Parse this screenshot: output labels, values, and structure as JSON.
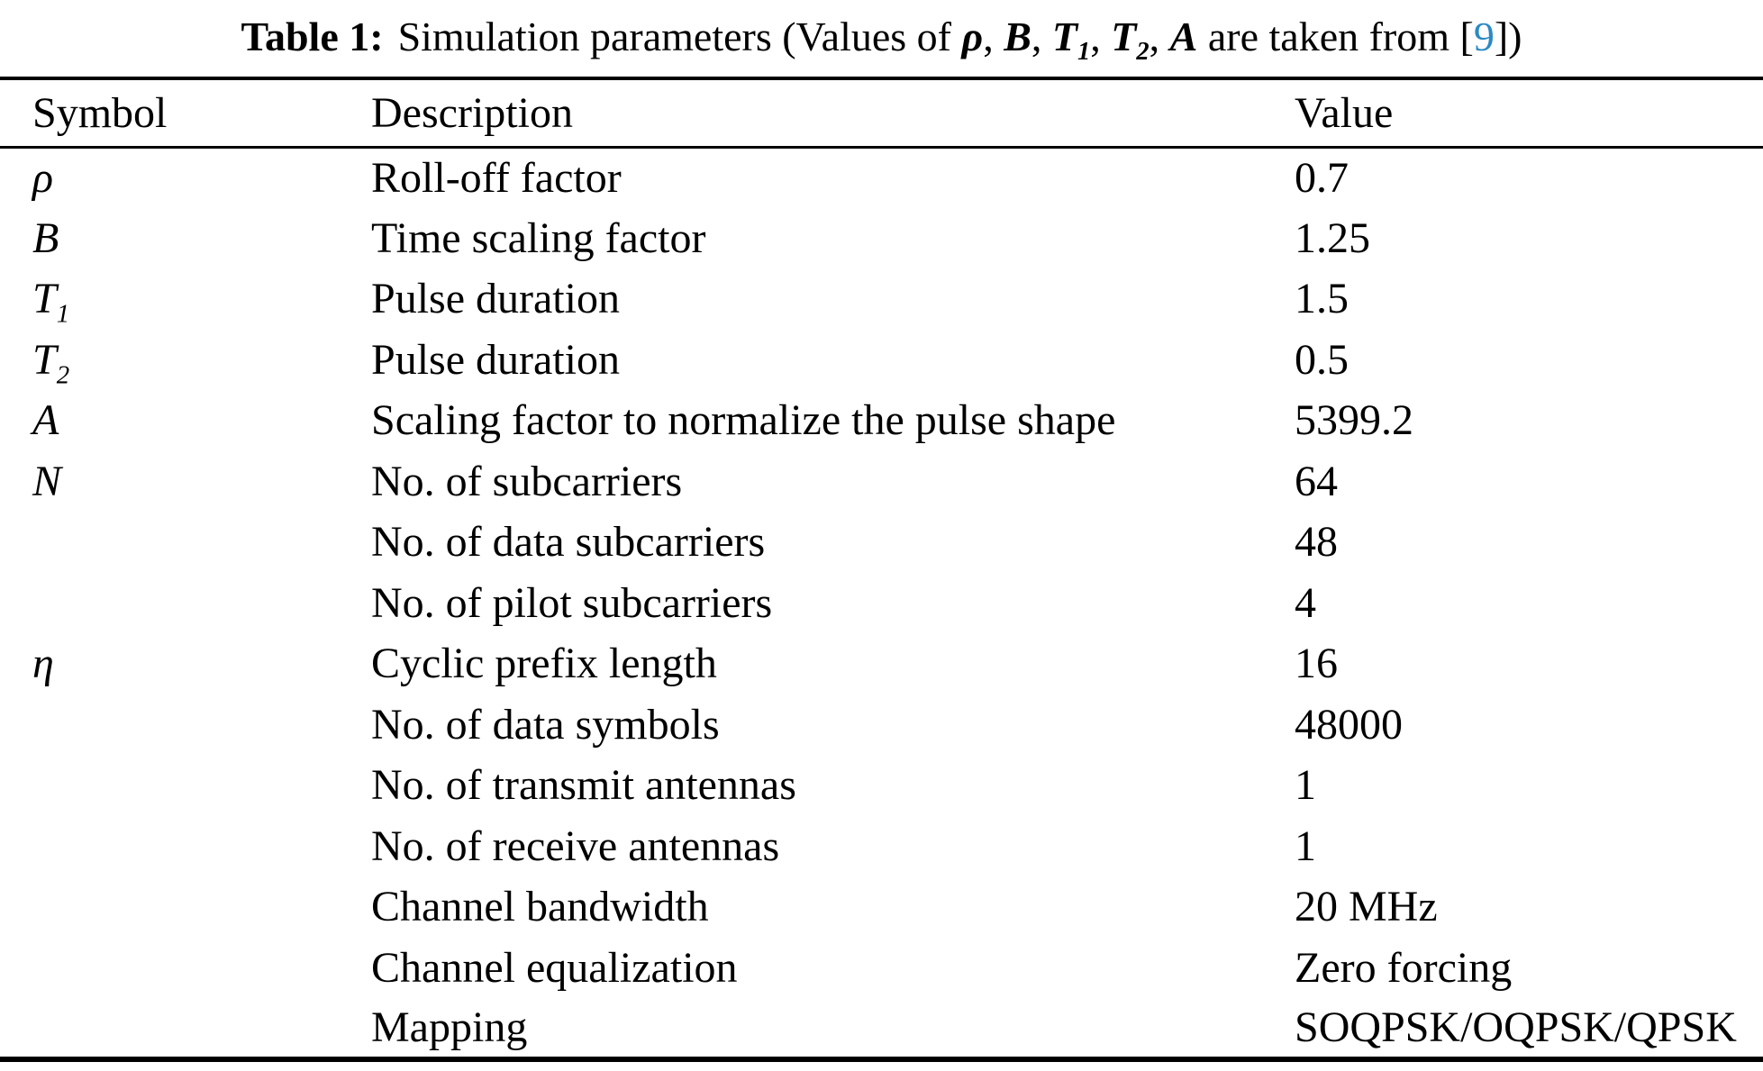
{
  "caption": {
    "label": "Table 1:",
    "seg_a": "Simulation parameters (Values of ",
    "sym_rho": "ρ",
    "sep_1": ", ",
    "sym_B": "B",
    "sep_2": ", ",
    "sym_T1_base": "T",
    "sym_T1_sub": "1",
    "sep_3": ", ",
    "sym_T2_base": "T",
    "sym_T2_sub": "2",
    "sep_4": ", ",
    "sym_A": "A",
    "seg_b": " are taken from [",
    "citation": "9",
    "seg_c": "])"
  },
  "colors": {
    "citation_blue": "#2a8ac4",
    "text": "#000000",
    "background": "#ffffff"
  },
  "table": {
    "columns": [
      "Symbol",
      "Description",
      "Value"
    ],
    "rows": [
      {
        "symbol": "ρ",
        "sub": "",
        "description": "Roll-off factor",
        "value": "0.7"
      },
      {
        "symbol": "B",
        "sub": "",
        "description": "Time scaling factor",
        "value": "1.25"
      },
      {
        "symbol": "T",
        "sub": "1",
        "description": "Pulse duration",
        "value": "1.5"
      },
      {
        "symbol": "T",
        "sub": "2",
        "description": "Pulse duration",
        "value": "0.5"
      },
      {
        "symbol": "A",
        "sub": "",
        "description": "Scaling factor to normalize the pulse shape",
        "value": "5399.2"
      },
      {
        "symbol": "N",
        "sub": "",
        "description": "No. of subcarriers",
        "value": "64"
      },
      {
        "symbol": "",
        "sub": "",
        "description": "No. of data subcarriers",
        "value": "48"
      },
      {
        "symbol": "",
        "sub": "",
        "description": "No. of pilot subcarriers",
        "value": "4"
      },
      {
        "symbol": "η",
        "sub": "",
        "description": "Cyclic prefix length",
        "value": "16"
      },
      {
        "symbol": "",
        "sub": "",
        "description": "No. of data symbols",
        "value": "48000"
      },
      {
        "symbol": "",
        "sub": "",
        "description": "No. of transmit antennas",
        "value": "1"
      },
      {
        "symbol": "",
        "sub": "",
        "description": "No. of receive antennas",
        "value": "1"
      },
      {
        "symbol": "",
        "sub": "",
        "description": "Channel bandwidth",
        "value": "20 MHz"
      },
      {
        "symbol": "",
        "sub": "",
        "description": "Channel equalization",
        "value": "Zero forcing"
      },
      {
        "symbol": "",
        "sub": "",
        "description": "Mapping",
        "value": "SOQPSK/OQPSK/QPSK"
      }
    ]
  }
}
